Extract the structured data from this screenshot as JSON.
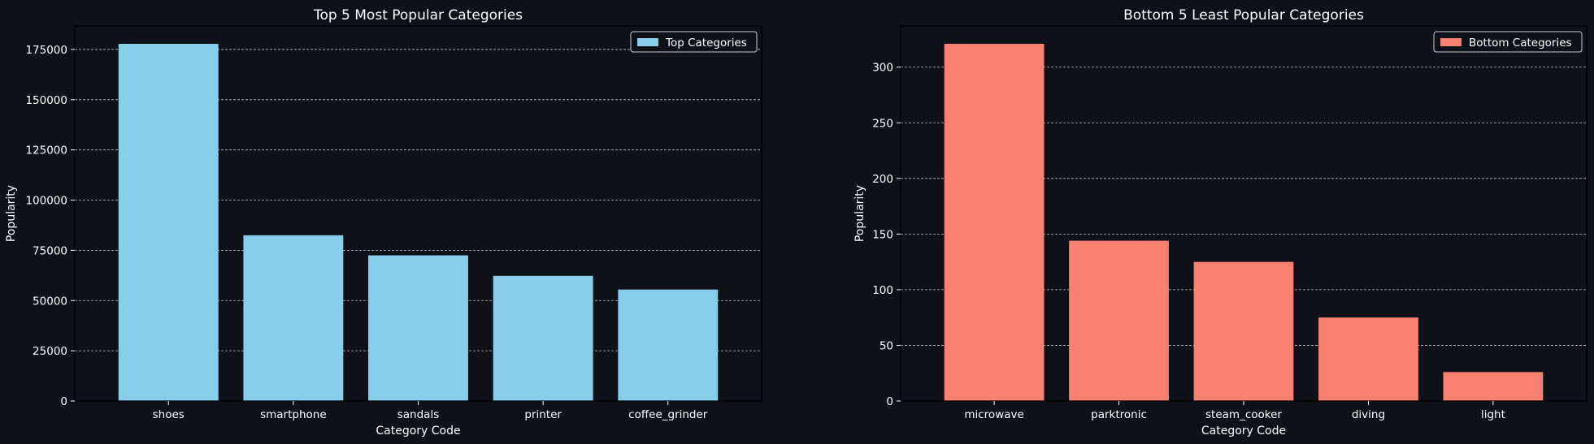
{
  "colors": {
    "background": "#0e1117",
    "axes": "#ffffff",
    "grid": "#bfbfbf",
    "text": "#ffffff",
    "top_bars": "#87ceeb",
    "bottom_bars": "#fa8072"
  },
  "chart_data": [
    {
      "type": "bar",
      "title": "Top 5 Most Popular Categories",
      "xlabel": "Category Code",
      "ylabel": "Popularity",
      "categories": [
        "shoes",
        "smartphone",
        "sandals",
        "printer",
        "coffee_grinder"
      ],
      "series": [
        {
          "name": "Top Categories",
          "values": [
            177800,
            82500,
            72500,
            62300,
            55500
          ],
          "color": "#87ceeb"
        }
      ],
      "ylim": [
        0,
        186690
      ],
      "yticks": [
        0,
        25000,
        50000,
        75000,
        100000,
        125000,
        150000,
        175000
      ],
      "ytick_labels": [
        "0",
        "25000",
        "50000",
        "75000",
        "100000",
        "125000",
        "150000",
        "175000"
      ],
      "grid": "y-dashed",
      "legend": "top-right"
    },
    {
      "type": "bar",
      "title": "Bottom 5 Least Popular Categories",
      "xlabel": "Category Code",
      "ylabel": "Popularity",
      "categories": [
        "microwave",
        "parktronic",
        "steam_cooker",
        "diving",
        "light"
      ],
      "series": [
        {
          "name": "Bottom Categories",
          "values": [
            321,
            144,
            125,
            75,
            26
          ],
          "color": "#fa8072"
        }
      ],
      "ylim": [
        0,
        337
      ],
      "yticks": [
        0,
        50,
        100,
        150,
        200,
        250,
        300
      ],
      "ytick_labels": [
        "0",
        "50",
        "100",
        "150",
        "200",
        "250",
        "300"
      ],
      "grid": "y-dashed",
      "legend": "top-right"
    }
  ]
}
